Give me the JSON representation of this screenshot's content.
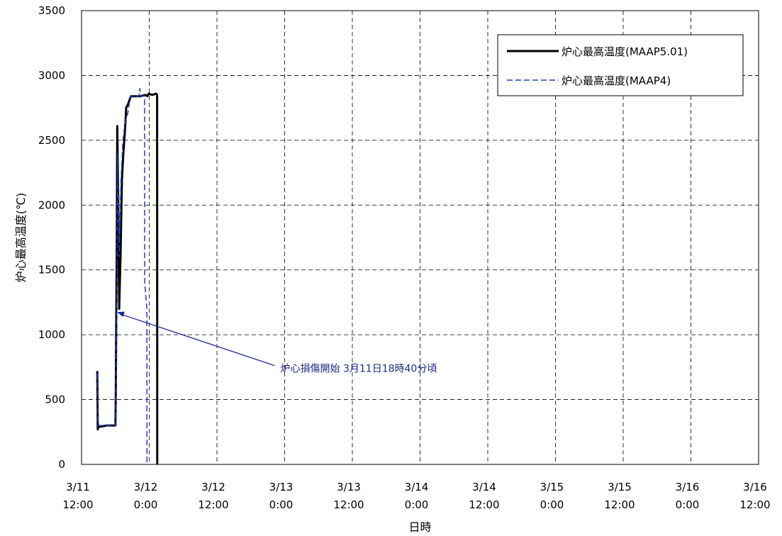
{
  "chart_data": {
    "type": "line",
    "xlabel": "日時",
    "ylabel": "炉心最高温度(℃)",
    "xlim": [
      "3/11 12:00",
      "3/16 12:00"
    ],
    "ylim": [
      0,
      3500
    ],
    "yticks": [
      0,
      500,
      1000,
      1500,
      2000,
      2500,
      3000,
      3500
    ],
    "xticks": [
      {
        "line1": "3/11",
        "line2": "12:00"
      },
      {
        "line1": "3/12",
        "line2": "0:00"
      },
      {
        "line1": "3/12",
        "line2": "12:00"
      },
      {
        "line1": "3/13",
        "line2": "0:00"
      },
      {
        "line1": "3/13",
        "line2": "12:00"
      },
      {
        "line1": "3/14",
        "line2": "0:00"
      },
      {
        "line1": "3/14",
        "line2": "12:00"
      },
      {
        "line1": "3/15",
        "line2": "0:00"
      },
      {
        "line1": "3/15",
        "line2": "12:00"
      },
      {
        "line1": "3/16",
        "line2": "0:00"
      },
      {
        "line1": "3/16",
        "line2": "12:00"
      }
    ],
    "grid": true,
    "legend_position": "top-right",
    "series": [
      {
        "name": "炉心最高温度(MAAP5.01)",
        "color": "#000000",
        "style": "solid",
        "x": [
          "3/11 14:47",
          "3/11 14:53",
          "3/11 15:00",
          "3/11 15:12",
          "3/11 16:30",
          "3/11 18:00",
          "3/11 18:04",
          "3/11 18:10",
          "3/11 18:15",
          "3/11 18:20",
          "3/11 18:30",
          "3/11 18:40",
          "3/11 18:55",
          "3/11 19:10",
          "3/11 19:25",
          "3/11 19:40",
          "3/11 19:55",
          "3/11 20:15",
          "3/11 20:45",
          "3/11 21:30",
          "3/11 22:30",
          "3/11 23:20",
          "3/11 23:40",
          "3/11 23:55",
          "3/12 0:30",
          "3/12 1:15",
          "3/12 1:24",
          "3/12 1:25"
        ],
        "y": [
          720,
          270,
          300,
          290,
          300,
          300,
          550,
          1200,
          1700,
          2610,
          2100,
          1200,
          1600,
          2200,
          2400,
          2550,
          2750,
          2780,
          2840,
          2840,
          2840,
          2850,
          2840,
          2860,
          2850,
          2860,
          2850,
          0
        ]
      },
      {
        "name": "炉心最高温度(MAAP4)",
        "color": "#1f3fbf",
        "style": "dashed",
        "x": [
          "3/11 14:47",
          "3/11 14:53",
          "3/11 15:05",
          "3/11 16:30",
          "3/11 18:00",
          "3/11 18:05",
          "3/11 18:15",
          "3/11 18:25",
          "3/11 18:40",
          "3/11 19:00",
          "3/11 19:20",
          "3/11 19:45",
          "3/11 20:10",
          "3/11 20:40",
          "3/11 21:30",
          "3/11 22:10",
          "3/11 22:20",
          "3/11 22:30",
          "3/11 22:50",
          "3/11 23:10",
          "3/11 23:12",
          "3/11 23:35",
          "3/11 23:36"
        ],
        "y": [
          700,
          300,
          300,
          300,
          300,
          600,
          1100,
          2400,
          1600,
          2200,
          2500,
          2650,
          2700,
          2840,
          2840,
          2840,
          2900,
          2840,
          2840,
          2840,
          1400,
          1200,
          0
        ]
      }
    ],
    "annotations": [
      {
        "text": "炉心損傷開始  3月11日18時40分頃",
        "target": {
          "x": "3/11 18:40",
          "y": 1170
        },
        "anchor": {
          "x": "3/12 23:15",
          "y": 740
        }
      }
    ]
  }
}
